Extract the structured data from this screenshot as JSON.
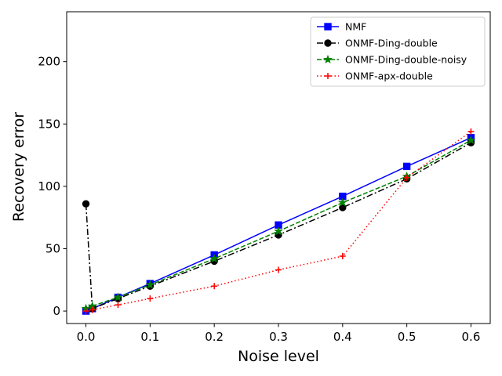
{
  "chart_data": {
    "type": "line",
    "title": "",
    "xlabel": "Noise level",
    "ylabel": "Recovery error",
    "xlim": [
      -0.03,
      0.63
    ],
    "ylim": [
      -10,
      240
    ],
    "grid": false,
    "legend_position": "top-right",
    "xticks": [
      0.0,
      0.1,
      0.2,
      0.3,
      0.4,
      0.5,
      0.6
    ],
    "xtick_labels": [
      "0.0",
      "0.1",
      "0.2",
      "0.3",
      "0.4",
      "0.5",
      "0.6"
    ],
    "yticks": [
      0,
      50,
      100,
      150,
      200
    ],
    "ytick_labels": [
      "0",
      "50",
      "100",
      "150",
      "200"
    ],
    "x": [
      0.0,
      0.01,
      0.05,
      0.1,
      0.2,
      0.3,
      0.4,
      0.5,
      0.6
    ],
    "series": [
      {
        "name": "NMF",
        "color": "#0000ff",
        "linestyle": "solid",
        "marker": "square",
        "values": [
          0,
          2,
          11,
          22,
          45,
          69,
          92,
          116,
          139
        ]
      },
      {
        "name": "ONMF-Ding-double",
        "color": "#000000",
        "linestyle": "dashdot",
        "marker": "circle",
        "values": [
          86,
          2,
          10,
          20,
          40,
          61,
          83,
          106,
          135
        ]
      },
      {
        "name": "ONMF-Ding-double-noisy",
        "color": "#008000",
        "linestyle": "dashed",
        "marker": "star",
        "values": [
          2,
          4,
          11,
          21,
          42,
          64,
          87,
          108,
          137
        ]
      },
      {
        "name": "ONMF-apx-double",
        "color": "#ff0000",
        "linestyle": "dotted",
        "marker": "plus",
        "values": [
          0,
          1,
          5,
          10,
          20,
          33,
          44,
          107,
          144
        ]
      }
    ]
  }
}
